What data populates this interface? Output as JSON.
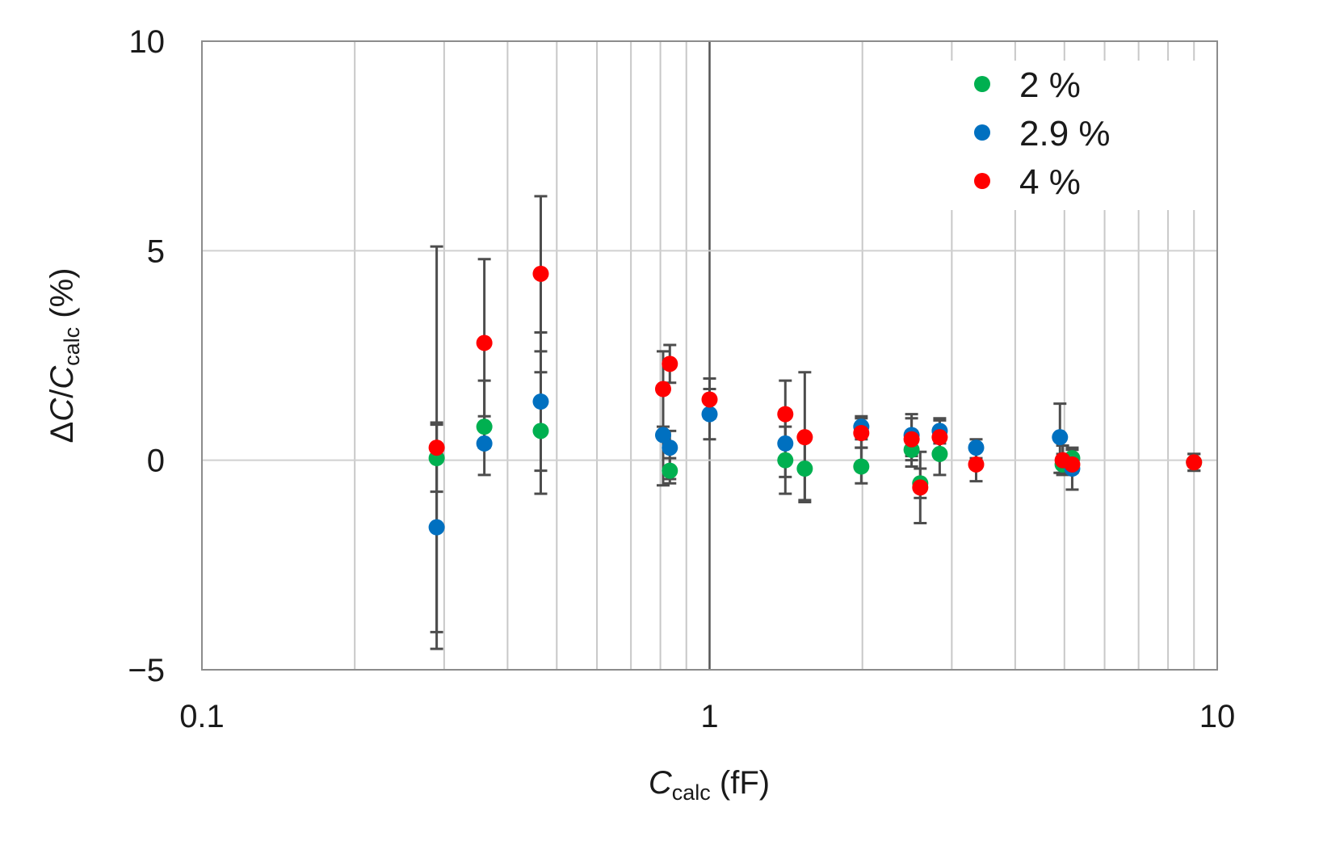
{
  "chart_data": {
    "type": "scatter",
    "x_scale": "log",
    "xlim": [
      0.1,
      10
    ],
    "ylim": [
      -5,
      10
    ],
    "x_ticks": [
      "0.1",
      "1",
      "10"
    ],
    "y_ticks": [
      "−5",
      "0",
      "5",
      "10"
    ],
    "xlabel": "C_calc (fF)",
    "ylabel": "ΔC/C_calc (%)",
    "grid": true,
    "legend_position": "top-right",
    "series": [
      {
        "name": "2 %",
        "color": "#00b050",
        "points": [
          {
            "x": 0.29,
            "y": 0.05,
            "err_low": -0.75,
            "err_high": 0.85
          },
          {
            "x": 0.36,
            "y": 0.8,
            "err_low": 0.3,
            "err_high": 1.9
          },
          {
            "x": 0.465,
            "y": 0.7,
            "err_low": -0.8,
            "err_high": 2.1
          },
          {
            "x": 0.835,
            "y": -0.25,
            "err_low": -0.55,
            "err_high": 0.05
          },
          {
            "x": 1.41,
            "y": 0.0,
            "err_low": -0.8,
            "err_high": 0.8
          },
          {
            "x": 1.54,
            "y": -0.2,
            "err_low": -0.95,
            "err_high": 0.5
          },
          {
            "x": 1.99,
            "y": -0.15,
            "err_low": -0.55,
            "err_high": 0.3
          },
          {
            "x": 2.5,
            "y": 0.25,
            "err_low": -0.15,
            "err_high": 0.7
          },
          {
            "x": 2.6,
            "y": -0.55,
            "err_low": -0.9,
            "err_high": -0.2
          },
          {
            "x": 2.84,
            "y": 0.15,
            "err_low": -0.35,
            "err_high": 0.6
          },
          {
            "x": 4.96,
            "y": -0.1,
            "err_low": -0.3,
            "err_high": 0.15
          },
          {
            "x": 5.18,
            "y": 0.05,
            "err_low": -0.1,
            "err_high": 0.25
          },
          {
            "x": 9.0,
            "y": -0.05,
            "err_low": -0.25,
            "err_high": 0.15
          }
        ]
      },
      {
        "name": "2.9 %",
        "color": "#0070c0",
        "points": [
          {
            "x": 0.29,
            "y": -1.6,
            "err_low": -4.1,
            "err_high": 0.9
          },
          {
            "x": 0.36,
            "y": 0.4,
            "err_low": -0.35,
            "err_high": 1.05
          },
          {
            "x": 0.465,
            "y": 1.4,
            "err_low": -0.25,
            "err_high": 3.05
          },
          {
            "x": 0.81,
            "y": 0.6,
            "err_low": -0.6,
            "err_high": 1.7
          },
          {
            "x": 0.835,
            "y": 0.3,
            "err_low": -0.45,
            "err_high": 0.7
          },
          {
            "x": 1.0,
            "y": 1.1,
            "err_low": 0.5,
            "err_high": 1.7
          },
          {
            "x": 1.41,
            "y": 0.4,
            "err_low": -0.4,
            "err_high": 1.2
          },
          {
            "x": 1.99,
            "y": 0.8,
            "err_low": 0.5,
            "err_high": 1.05
          },
          {
            "x": 2.5,
            "y": 0.6,
            "err_low": 0.1,
            "err_high": 1.1
          },
          {
            "x": 2.84,
            "y": 0.7,
            "err_low": 0.4,
            "err_high": 0.95
          },
          {
            "x": 3.35,
            "y": 0.3,
            "err_low": 0.05,
            "err_high": 0.5
          },
          {
            "x": 4.9,
            "y": 0.55,
            "err_low": -0.3,
            "err_high": 1.35
          },
          {
            "x": 5.18,
            "y": -0.2,
            "err_low": -0.7,
            "err_high": 0.3
          }
        ]
      },
      {
        "name": "4 %",
        "color": "#ff0000",
        "points": [
          {
            "x": 0.29,
            "y": 0.3,
            "err_low": -4.5,
            "err_high": 5.1
          },
          {
            "x": 0.36,
            "y": 2.8,
            "err_low": 0.8,
            "err_high": 4.8
          },
          {
            "x": 0.465,
            "y": 4.45,
            "err_low": 2.6,
            "err_high": 6.3
          },
          {
            "x": 0.81,
            "y": 1.7,
            "err_low": 0.8,
            "err_high": 2.6
          },
          {
            "x": 0.835,
            "y": 2.3,
            "err_low": 1.85,
            "err_high": 2.75
          },
          {
            "x": 1.0,
            "y": 1.45,
            "err_low": 1.0,
            "err_high": 1.95
          },
          {
            "x": 1.41,
            "y": 1.1,
            "err_low": 0.4,
            "err_high": 1.9
          },
          {
            "x": 1.54,
            "y": 0.55,
            "err_low": -1.0,
            "err_high": 2.1
          },
          {
            "x": 1.99,
            "y": 0.65,
            "err_low": 0.3,
            "err_high": 1.0
          },
          {
            "x": 2.5,
            "y": 0.5,
            "err_low": 0.0,
            "err_high": 1.0
          },
          {
            "x": 2.6,
            "y": -0.65,
            "err_low": -1.5,
            "err_high": 0.2
          },
          {
            "x": 2.84,
            "y": 0.55,
            "err_low": 0.1,
            "err_high": 1.0
          },
          {
            "x": 3.35,
            "y": -0.1,
            "err_low": -0.5,
            "err_high": 0.3
          },
          {
            "x": 4.96,
            "y": 0.0,
            "err_low": -0.35,
            "err_high": 0.35
          },
          {
            "x": 5.18,
            "y": -0.1,
            "err_low": -0.3,
            "err_high": 0.1
          },
          {
            "x": 9.0,
            "y": -0.05,
            "err_low": -0.25,
            "err_high": 0.15
          }
        ]
      }
    ]
  }
}
